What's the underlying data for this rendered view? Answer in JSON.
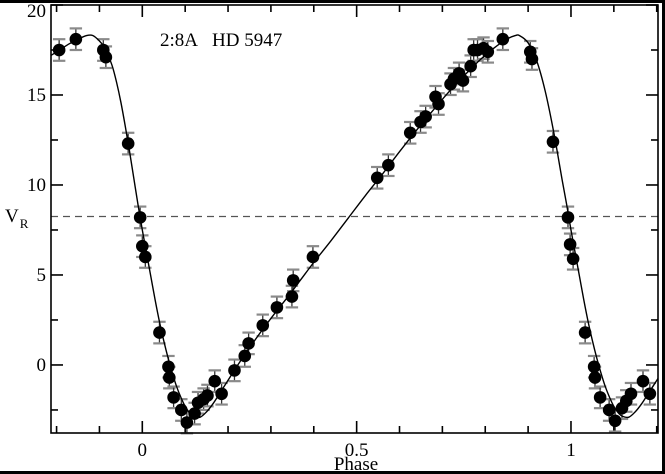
{
  "figure": {
    "title": "2:8A  HD 5947",
    "title_left": "2:8A",
    "title_right": "HD 5947",
    "xlabel": "Phase",
    "ylabel": "V",
    "ylabel_sub": "R"
  },
  "colors": {
    "background": "#ffffff",
    "frame": "#000000",
    "point": "#000000",
    "curve": "#000000",
    "error_stem": "#333333",
    "error_cap": "#8a8a8a",
    "dashed_line": "#555555",
    "text": "#000000",
    "border": "#000000"
  },
  "chart_data": {
    "type": "scatter",
    "title": "2:8A  HD 5947",
    "xlabel": "Phase",
    "ylabel": "V_R",
    "xlim": [
      -0.213,
      1.203
    ],
    "ylim": [
      -3.78,
      20
    ],
    "grid": false,
    "legend": false,
    "x_major_ticks": [
      0,
      0.5,
      1
    ],
    "x_major_labels": [
      "0",
      "0.5",
      "1"
    ],
    "x_minor_ticks": [
      -0.2,
      -0.1,
      0.1,
      0.2,
      0.3,
      0.4,
      0.6,
      0.7,
      0.8,
      0.9,
      1.1,
      1.2
    ],
    "y_major_ticks": [
      20,
      15,
      10,
      5,
      0
    ],
    "y_major_labels": [
      "20",
      "15",
      "10",
      "5",
      "0"
    ],
    "y_minor_ticks": [
      17.5,
      12.5,
      7.5,
      2.5,
      -2.5
    ],
    "systemic_velocity_dashed_y": 8.25,
    "error_bar_sigma": 0.6,
    "points": [
      [
        -0.194,
        17.5
      ],
      [
        -0.155,
        18.1
      ],
      [
        -0.091,
        17.5
      ],
      [
        -0.085,
        17.1
      ],
      [
        -0.033,
        12.3
      ],
      [
        -0.005,
        8.2
      ],
      [
        0.0,
        6.6
      ],
      [
        0.007,
        6.0
      ],
      [
        0.04,
        1.8
      ],
      [
        0.061,
        -0.1
      ],
      [
        0.063,
        -0.7
      ],
      [
        0.073,
        -1.8
      ],
      [
        0.091,
        -2.5
      ],
      [
        0.104,
        -3.2
      ],
      [
        0.122,
        -2.7
      ],
      [
        0.13,
        -2.1
      ],
      [
        0.143,
        -1.9
      ],
      [
        0.152,
        -1.7
      ],
      [
        0.169,
        -0.9
      ],
      [
        0.185,
        -1.6
      ],
      [
        0.215,
        -0.3
      ],
      [
        0.239,
        0.5
      ],
      [
        0.248,
        1.2
      ],
      [
        0.281,
        2.2
      ],
      [
        0.314,
        3.2
      ],
      [
        0.349,
        3.8
      ],
      [
        0.352,
        4.7
      ],
      [
        0.398,
        6.0
      ],
      [
        0.548,
        10.4
      ],
      [
        0.574,
        11.1
      ],
      [
        0.625,
        12.9
      ],
      [
        0.649,
        13.5
      ],
      [
        0.661,
        13.8
      ],
      [
        0.684,
        14.9
      ],
      [
        0.691,
        14.5
      ],
      [
        0.719,
        15.6
      ],
      [
        0.727,
        15.9
      ],
      [
        0.739,
        16.2
      ],
      [
        0.748,
        15.8
      ],
      [
        0.766,
        16.6
      ],
      [
        0.773,
        17.5
      ],
      [
        0.782,
        17.5
      ],
      [
        0.796,
        17.6
      ],
      [
        0.806,
        17.4
      ],
      [
        0.841,
        18.1
      ],
      [
        0.905,
        17.4
      ],
      [
        0.909,
        17.0
      ],
      [
        0.958,
        12.4
      ],
      [
        0.993,
        8.2
      ],
      [
        0.998,
        6.7
      ],
      [
        1.005,
        5.9
      ],
      [
        1.033,
        1.8
      ],
      [
        1.054,
        -0.1
      ],
      [
        1.056,
        -0.7
      ],
      [
        1.068,
        -1.8
      ],
      [
        1.089,
        -2.5
      ],
      [
        1.103,
        -3.1
      ],
      [
        1.119,
        -2.4
      ],
      [
        1.129,
        -2.0
      ],
      [
        1.14,
        -1.6
      ],
      [
        1.168,
        -0.9
      ],
      [
        1.184,
        -1.6
      ]
    ],
    "fit_curve": [
      [
        -0.213,
        17.2
      ],
      [
        -0.19,
        17.55
      ],
      [
        -0.17,
        17.85
      ],
      [
        -0.15,
        18.1
      ],
      [
        -0.13,
        18.3
      ],
      [
        -0.115,
        18.3
      ],
      [
        -0.1,
        18.0
      ],
      [
        -0.09,
        17.7
      ],
      [
        -0.08,
        17.2
      ],
      [
        -0.07,
        16.6
      ],
      [
        -0.06,
        15.7
      ],
      [
        -0.05,
        14.6
      ],
      [
        -0.04,
        13.3
      ],
      [
        -0.03,
        11.9
      ],
      [
        -0.02,
        10.4
      ],
      [
        -0.01,
        8.9
      ],
      [
        0.0,
        7.5
      ],
      [
        0.01,
        6.2
      ],
      [
        0.02,
        4.9
      ],
      [
        0.03,
        3.6
      ],
      [
        0.04,
        2.4
      ],
      [
        0.05,
        1.35
      ],
      [
        0.06,
        0.4
      ],
      [
        0.07,
        -0.45
      ],
      [
        0.08,
        -1.2
      ],
      [
        0.09,
        -1.8
      ],
      [
        0.1,
        -2.3
      ],
      [
        0.11,
        -2.65
      ],
      [
        0.12,
        -2.85
      ],
      [
        0.135,
        -2.9
      ],
      [
        0.15,
        -2.6
      ],
      [
        0.165,
        -2.15
      ],
      [
        0.18,
        -1.6
      ],
      [
        0.2,
        -0.85
      ],
      [
        0.22,
        -0.1
      ],
      [
        0.25,
        0.95
      ],
      [
        0.28,
        1.95
      ],
      [
        0.31,
        2.9
      ],
      [
        0.34,
        3.8
      ],
      [
        0.37,
        4.75
      ],
      [
        0.4,
        5.7
      ],
      [
        0.44,
        6.9
      ],
      [
        0.48,
        8.15
      ],
      [
        0.52,
        9.4
      ],
      [
        0.56,
        10.6
      ],
      [
        0.6,
        11.85
      ],
      [
        0.64,
        13.05
      ],
      [
        0.68,
        14.2
      ],
      [
        0.72,
        15.3
      ],
      [
        0.76,
        16.3
      ],
      [
        0.79,
        17.0
      ],
      [
        0.82,
        17.6
      ],
      [
        0.85,
        18.1
      ],
      [
        0.87,
        18.3
      ],
      [
        0.88,
        18.3
      ],
      [
        0.9,
        17.9
      ],
      [
        0.92,
        16.9
      ],
      [
        0.94,
        15.2
      ],
      [
        0.96,
        12.9
      ],
      [
        0.98,
        10.2
      ],
      [
        0.99,
        8.9
      ],
      [
        1.0,
        7.5
      ],
      [
        1.01,
        6.2
      ],
      [
        1.02,
        4.9
      ],
      [
        1.03,
        3.6
      ],
      [
        1.04,
        2.4
      ],
      [
        1.05,
        1.35
      ],
      [
        1.06,
        0.4
      ],
      [
        1.07,
        -0.45
      ],
      [
        1.08,
        -1.2
      ],
      [
        1.09,
        -1.8
      ],
      [
        1.1,
        -2.3
      ],
      [
        1.11,
        -2.65
      ],
      [
        1.12,
        -2.85
      ],
      [
        1.135,
        -2.9
      ],
      [
        1.15,
        -2.6
      ],
      [
        1.165,
        -2.15
      ],
      [
        1.18,
        -1.6
      ],
      [
        1.203,
        -0.75
      ]
    ]
  }
}
